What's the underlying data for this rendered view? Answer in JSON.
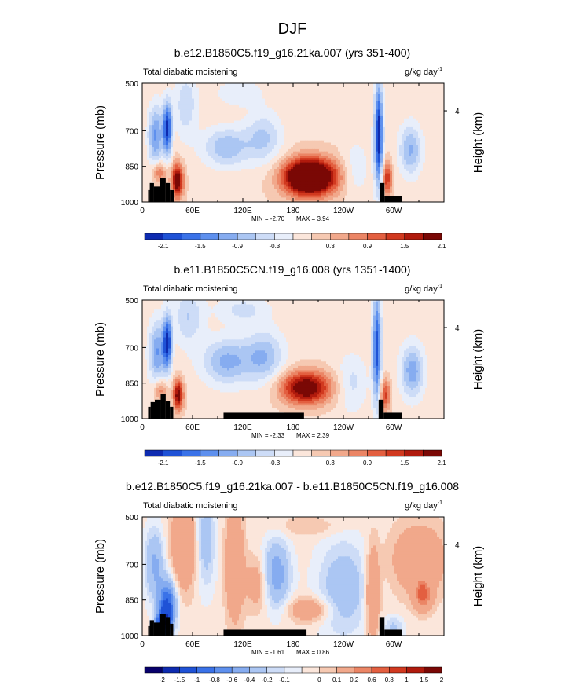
{
  "page_title": "DJF",
  "palette": {
    "blues": [
      "#07006b",
      "#0e2bb0",
      "#1f52d6",
      "#3a72e8",
      "#5e90ee",
      "#86acf0",
      "#abc6f3",
      "#cddcf7",
      "#e8eefa"
    ],
    "neutral": "#ffffff",
    "reds": [
      "#fbe6db",
      "#f6c9b2",
      "#f1a88b",
      "#eb8565",
      "#e35f40",
      "#d1391f",
      "#b01a0d",
      "#7a0805"
    ],
    "terrain": "#000000"
  },
  "chart_data": [
    {
      "type": "contour",
      "title": "b.e12.B1850C5.f19_g16.21ka.007 (yrs 351-400)",
      "left_label": "Total diabatic moistening",
      "units": "g/kg day",
      "units_exponent": "-1",
      "ylabel": "Pressure (mb)",
      "ylabel_right": "Height (km)",
      "x_ticks": [
        "0",
        "60E",
        "120E",
        "180",
        "120W",
        "60W"
      ],
      "x_tick_lon": [
        0,
        60,
        120,
        180,
        240,
        300
      ],
      "xlim": [
        0,
        360
      ],
      "y_ticks": [
        "500",
        "700",
        "850",
        "1000"
      ],
      "y_tick_p": [
        500,
        700,
        850,
        1000
      ],
      "ylim": [
        1000,
        500
      ],
      "right_ticks": [
        "4"
      ],
      "right_tick_p": [
        616
      ],
      "min_label": "MIN =  -2.70",
      "max_label": "MAX =   3.94",
      "colorbar_labels": [
        "-2.1",
        "-1.5",
        "-0.9",
        "-0.3",
        "0.3",
        "0.9",
        "1.5",
        "2.1"
      ],
      "colorbar_levels": [
        -2.4,
        -2.1,
        -1.8,
        -1.5,
        -1.2,
        -0.9,
        -0.6,
        -0.3,
        0,
        0.3,
        0.6,
        0.9,
        1.2,
        1.5,
        1.8,
        2.1,
        2.4
      ],
      "background": 0.25,
      "features": [
        {
          "lon": 16,
          "p": 720,
          "dlon": 9,
          "dp": 130,
          "value": -1.5
        },
        {
          "lon": 30,
          "p": 690,
          "dlon": 5,
          "dp": 110,
          "value": -2.4
        },
        {
          "lon": 42,
          "p": 910,
          "dlon": 7,
          "dp": 70,
          "value": 2.3
        },
        {
          "lon": 20,
          "p": 875,
          "dlon": 8,
          "dp": 45,
          "value": 1.1
        },
        {
          "lon": 52,
          "p": 590,
          "dlon": 14,
          "dp": 140,
          "value": -0.8
        },
        {
          "lon": 100,
          "p": 770,
          "dlon": 28,
          "dp": 85,
          "value": -1.1
        },
        {
          "lon": 145,
          "p": 730,
          "dlon": 22,
          "dp": 110,
          "value": -0.9
        },
        {
          "lon": 115,
          "p": 540,
          "dlon": 30,
          "dp": 60,
          "value": -0.5
        },
        {
          "lon": 200,
          "p": 895,
          "dlon": 30,
          "dp": 75,
          "value": 3.9
        },
        {
          "lon": 255,
          "p": 860,
          "dlon": 16,
          "dp": 120,
          "value": -0.5
        },
        {
          "lon": 282,
          "p": 720,
          "dlon": 5,
          "dp": 220,
          "value": -2.7
        },
        {
          "lon": 292,
          "p": 900,
          "dlon": 6,
          "dp": 70,
          "value": 1.5
        },
        {
          "lon": 320,
          "p": 780,
          "dlon": 14,
          "dp": 110,
          "value": -1.2
        }
      ],
      "terrain": [
        {
          "lon0": 7,
          "lon1": 9,
          "p": 950
        },
        {
          "lon0": 9,
          "lon1": 14,
          "p": 920
        },
        {
          "lon0": 14,
          "lon1": 21,
          "p": 935
        },
        {
          "lon0": 21,
          "lon1": 28,
          "p": 900
        },
        {
          "lon0": 28,
          "lon1": 33,
          "p": 920
        },
        {
          "lon0": 33,
          "lon1": 38,
          "p": 950
        },
        {
          "lon0": 284,
          "lon1": 289,
          "p": 920
        },
        {
          "lon0": 289,
          "lon1": 310,
          "p": 975
        }
      ]
    },
    {
      "type": "contour",
      "title": "b.e11.B1850C5CN.f19_g16.008 (yrs 1351-1400)",
      "left_label": "Total diabatic moistening",
      "units": "g/kg day",
      "units_exponent": "-1",
      "ylabel": "Pressure (mb)",
      "ylabel_right": "Height (km)",
      "x_ticks": [
        "0",
        "60E",
        "120E",
        "180",
        "120W",
        "60W"
      ],
      "x_tick_lon": [
        0,
        60,
        120,
        180,
        240,
        300
      ],
      "xlim": [
        0,
        360
      ],
      "y_ticks": [
        "500",
        "700",
        "850",
        "1000"
      ],
      "y_tick_p": [
        500,
        700,
        850,
        1000
      ],
      "ylim": [
        1000,
        500
      ],
      "right_ticks": [
        "4"
      ],
      "right_tick_p": [
        616
      ],
      "min_label": "MIN =  -2.33",
      "max_label": "MAX =   2.39",
      "colorbar_labels": [
        "-2.1",
        "-1.5",
        "-0.9",
        "-0.3",
        "0.3",
        "0.9",
        "1.5",
        "2.1"
      ],
      "colorbar_levels": [
        -2.4,
        -2.1,
        -1.8,
        -1.5,
        -1.2,
        -0.9,
        -0.6,
        -0.3,
        0,
        0.3,
        0.6,
        0.9,
        1.2,
        1.5,
        1.8,
        2.1,
        2.4
      ],
      "background": 0.2,
      "features": [
        {
          "lon": 18,
          "p": 720,
          "dlon": 10,
          "dp": 130,
          "value": -1.4
        },
        {
          "lon": 30,
          "p": 680,
          "dlon": 5,
          "dp": 110,
          "value": -2.3
        },
        {
          "lon": 43,
          "p": 900,
          "dlon": 6,
          "dp": 65,
          "value": 2.2
        },
        {
          "lon": 22,
          "p": 880,
          "dlon": 8,
          "dp": 45,
          "value": 1.0
        },
        {
          "lon": 55,
          "p": 570,
          "dlon": 18,
          "dp": 120,
          "value": -0.8
        },
        {
          "lon": 100,
          "p": 760,
          "dlon": 28,
          "dp": 95,
          "value": -1.2
        },
        {
          "lon": 145,
          "p": 740,
          "dlon": 24,
          "dp": 110,
          "value": -1.1
        },
        {
          "lon": 120,
          "p": 540,
          "dlon": 30,
          "dp": 60,
          "value": -0.6
        },
        {
          "lon": 195,
          "p": 870,
          "dlon": 30,
          "dp": 70,
          "value": 2.4
        },
        {
          "lon": 250,
          "p": 850,
          "dlon": 18,
          "dp": 120,
          "value": -0.6
        },
        {
          "lon": 280,
          "p": 700,
          "dlon": 5,
          "dp": 230,
          "value": -2.2
        },
        {
          "lon": 290,
          "p": 900,
          "dlon": 6,
          "dp": 70,
          "value": 1.4
        },
        {
          "lon": 322,
          "p": 800,
          "dlon": 14,
          "dp": 110,
          "value": -1.3
        }
      ],
      "terrain": [
        {
          "lon0": 7,
          "lon1": 10,
          "p": 950
        },
        {
          "lon0": 10,
          "lon1": 15,
          "p": 930
        },
        {
          "lon0": 15,
          "lon1": 22,
          "p": 920
        },
        {
          "lon0": 22,
          "lon1": 28,
          "p": 895
        },
        {
          "lon0": 28,
          "lon1": 33,
          "p": 925
        },
        {
          "lon0": 33,
          "lon1": 37,
          "p": 950
        },
        {
          "lon0": 97,
          "lon1": 193,
          "p": 975
        },
        {
          "lon0": 282,
          "lon1": 288,
          "p": 920
        },
        {
          "lon0": 288,
          "lon1": 310,
          "p": 975
        }
      ]
    },
    {
      "type": "contour",
      "title": "b.e12.B1850C5.f19_g16.21ka.007 - b.e11.B1850C5CN.f19_g16.008",
      "left_label": "Total diabatic moistening",
      "units": "g/kg day",
      "units_exponent": "-1",
      "ylabel": "Pressure (mb)",
      "ylabel_right": "Height (km)",
      "x_ticks": [
        "0",
        "60E",
        "120E",
        "180",
        "120W",
        "60W"
      ],
      "x_tick_lon": [
        0,
        60,
        120,
        180,
        240,
        300
      ],
      "xlim": [
        0,
        360
      ],
      "y_ticks": [
        "500",
        "700",
        "850",
        "1000"
      ],
      "y_tick_p": [
        500,
        700,
        850,
        1000
      ],
      "ylim": [
        1000,
        500
      ],
      "right_ticks": [
        "4"
      ],
      "right_tick_p": [
        616
      ],
      "min_label": "MIN =  -1.61",
      "max_label": "MAX =   0.86",
      "colorbar_labels": [
        "-2",
        "-1.5",
        "-1",
        "-0.8",
        "-0.6",
        "-0.4",
        "-0.2",
        "-0.1",
        "0",
        "0.1",
        "0.2",
        "0.6",
        "0.8",
        "1",
        "1.5",
        "2"
      ],
      "colorbar_levels": [
        -2.5,
        -2,
        -1.5,
        -1,
        -0.8,
        -0.6,
        -0.4,
        -0.2,
        -0.1,
        0,
        0.1,
        0.2,
        0.6,
        0.8,
        1,
        1.5,
        2,
        2.5
      ],
      "background": 0.05,
      "features": [
        {
          "lon": 15,
          "p": 700,
          "dlon": 12,
          "dp": 150,
          "value": -0.5
        },
        {
          "lon": 30,
          "p": 870,
          "dlon": 10,
          "dp": 100,
          "value": -1.1
        },
        {
          "lon": 25,
          "p": 950,
          "dlon": 8,
          "dp": 50,
          "value": -1.6
        },
        {
          "lon": 50,
          "p": 620,
          "dlon": 16,
          "dp": 180,
          "value": 0.5
        },
        {
          "lon": 75,
          "p": 600,
          "dlon": 12,
          "dp": 200,
          "value": -0.4
        },
        {
          "lon": 110,
          "p": 700,
          "dlon": 10,
          "dp": 220,
          "value": 0.55
        },
        {
          "lon": 137,
          "p": 780,
          "dlon": 14,
          "dp": 110,
          "value": 0.3
        },
        {
          "lon": 160,
          "p": 740,
          "dlon": 16,
          "dp": 140,
          "value": -0.6
        },
        {
          "lon": 200,
          "p": 890,
          "dlon": 25,
          "dp": 50,
          "value": 0.4
        },
        {
          "lon": 240,
          "p": 800,
          "dlon": 30,
          "dp": 200,
          "value": -0.4
        },
        {
          "lon": 275,
          "p": 820,
          "dlon": 8,
          "dp": 180,
          "value": 0.6
        },
        {
          "lon": 300,
          "p": 970,
          "dlon": 12,
          "dp": 50,
          "value": -0.3
        },
        {
          "lon": 330,
          "p": 680,
          "dlon": 30,
          "dp": 140,
          "value": 0.45
        },
        {
          "lon": 335,
          "p": 830,
          "dlon": 10,
          "dp": 60,
          "value": 0.8
        },
        {
          "lon": 200,
          "p": 540,
          "dlon": 40,
          "dp": 40,
          "value": 0.15
        }
      ],
      "terrain": [
        {
          "lon0": 7,
          "lon1": 9,
          "p": 960
        },
        {
          "lon0": 9,
          "lon1": 14,
          "p": 935
        },
        {
          "lon0": 14,
          "lon1": 21,
          "p": 945
        },
        {
          "lon0": 21,
          "lon1": 28,
          "p": 910
        },
        {
          "lon0": 28,
          "lon1": 33,
          "p": 925
        },
        {
          "lon0": 33,
          "lon1": 37,
          "p": 950
        },
        {
          "lon0": 97,
          "lon1": 196,
          "p": 975
        },
        {
          "lon0": 283,
          "lon1": 289,
          "p": 925
        },
        {
          "lon0": 289,
          "lon1": 310,
          "p": 975
        }
      ]
    }
  ]
}
